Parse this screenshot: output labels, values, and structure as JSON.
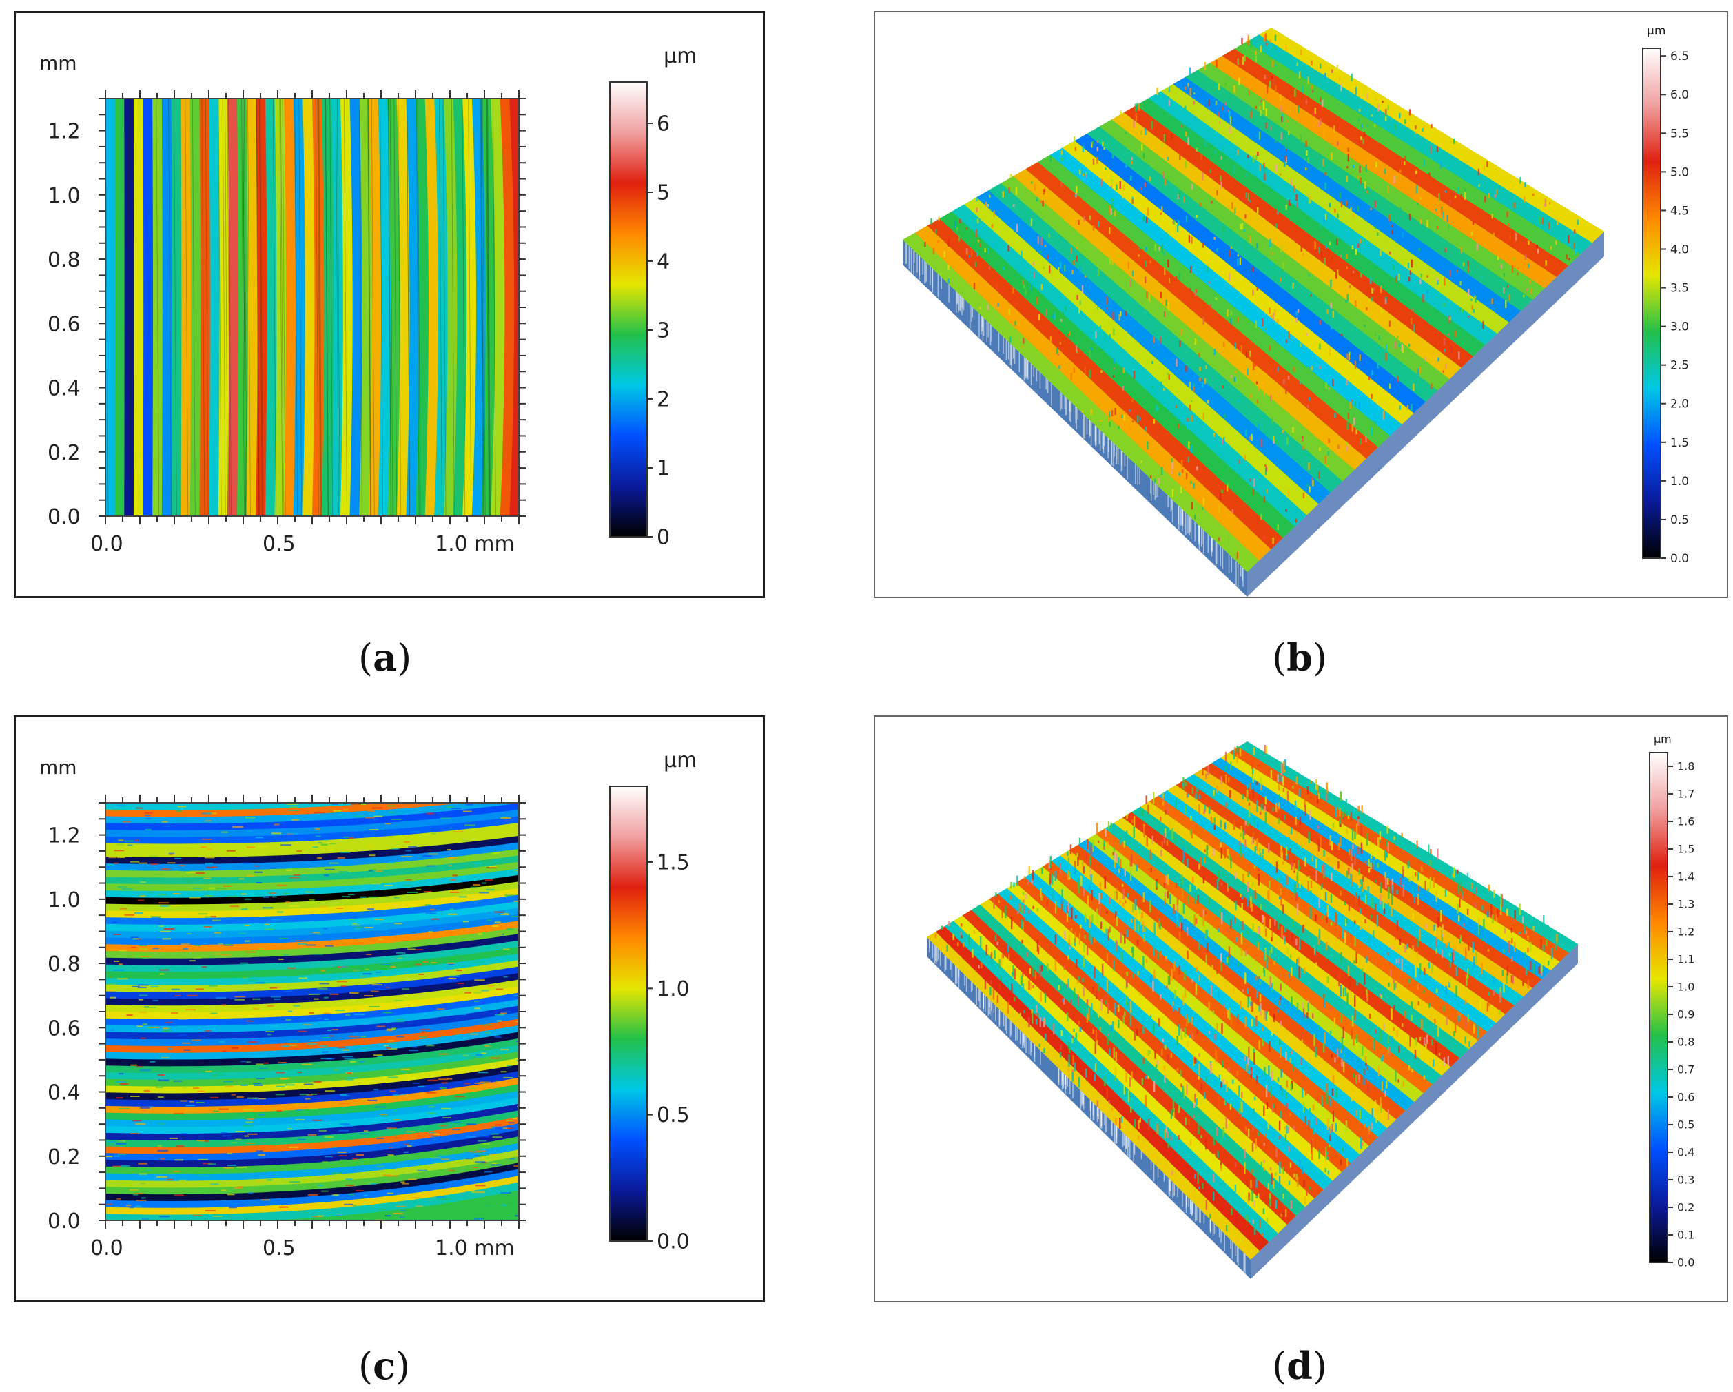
{
  "captions": {
    "a": "a",
    "b": "b",
    "c": "c",
    "d": "d"
  },
  "colorscale": [
    "#000000",
    "#0a1a9a",
    "#0050ff",
    "#00c8e6",
    "#22c04a",
    "#e6e600",
    "#ff8800",
    "#e02010",
    "#f0a0a0",
    "#ffffff"
  ],
  "chart_data": [
    {
      "panel": "a",
      "type": "heatmap",
      "view": "2D topography",
      "y_unit": "mm",
      "x_ticks": [
        "0.0",
        "0.5",
        "1.0 mm"
      ],
      "y_ticks": [
        "0.0",
        "0.2",
        "0.4",
        "0.6",
        "0.8",
        "1.0",
        "1.2"
      ],
      "xlim": [
        0,
        1.3
      ],
      "ylim": [
        0,
        1.3
      ],
      "colorbar": {
        "unit": "µm",
        "ticks": [
          "0",
          "1",
          "2",
          "3",
          "4",
          "5",
          "6"
        ],
        "range": [
          0,
          6.6
        ]
      },
      "texture": "vertical grooves"
    },
    {
      "panel": "b",
      "type": "heatmap",
      "view": "3D surface",
      "colorbar": {
        "unit": "µm",
        "ticks": [
          "0.0",
          "0.5",
          "1.0",
          "1.5",
          "2.0",
          "2.5",
          "3.0",
          "3.5",
          "4.0",
          "4.5",
          "5.0",
          "5.5",
          "6.0",
          "6.5"
        ],
        "range": [
          0,
          6.6
        ]
      },
      "texture": "diagonal ridges"
    },
    {
      "panel": "c",
      "type": "heatmap",
      "view": "2D topography",
      "y_unit": "mm",
      "x_ticks": [
        "0.0",
        "0.5",
        "1.0 mm"
      ],
      "y_ticks": [
        "0.0",
        "0.2",
        "0.4",
        "0.6",
        "0.8",
        "1.0",
        "1.2"
      ],
      "xlim": [
        0,
        1.3
      ],
      "ylim": [
        0,
        1.3
      ],
      "colorbar": {
        "unit": "µm",
        "ticks": [
          "0.0",
          "0.5",
          "1.0",
          "1.5"
        ],
        "range": [
          0,
          1.8
        ]
      },
      "texture": "curved horizontal grooves"
    },
    {
      "panel": "d",
      "type": "heatmap",
      "view": "3D surface",
      "colorbar": {
        "unit": "µm",
        "ticks": [
          "0.0",
          "0.1",
          "0.2",
          "0.3",
          "0.4",
          "0.5",
          "0.6",
          "0.7",
          "0.8",
          "0.9",
          "1.0",
          "1.1",
          "1.2",
          "1.3",
          "1.4",
          "1.5",
          "1.6",
          "1.7",
          "1.8"
        ],
        "range": [
          0,
          1.85
        ]
      },
      "texture": "rough peaks"
    }
  ]
}
